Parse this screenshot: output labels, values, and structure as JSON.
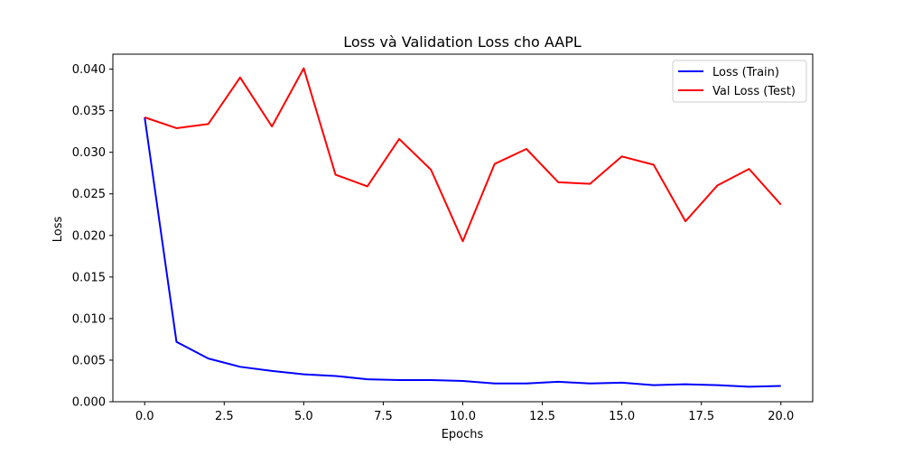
{
  "chart_data": {
    "type": "line",
    "title": "Loss và Validation Loss cho AAPL",
    "xlabel": "Epochs",
    "ylabel": "Loss",
    "xlim": [
      -1,
      21
    ],
    "ylim": [
      0.0,
      0.0418
    ],
    "x_ticks": [
      0,
      2.5,
      5,
      7.5,
      10,
      12.5,
      15,
      17.5,
      20
    ],
    "x_tick_labels": [
      "0.0",
      "2.5",
      "5.0",
      "7.5",
      "10.0",
      "12.5",
      "15.0",
      "17.5",
      "20.0"
    ],
    "y_ticks": [
      0.0,
      0.005,
      0.01,
      0.015,
      0.02,
      0.025,
      0.03,
      0.035,
      0.04
    ],
    "y_tick_labels": [
      "0.000",
      "0.005",
      "0.010",
      "0.015",
      "0.020",
      "0.025",
      "0.030",
      "0.035",
      "0.040"
    ],
    "grid": false,
    "legend_position": "top-right",
    "x": [
      0,
      1,
      2,
      3,
      4,
      5,
      6,
      7,
      8,
      9,
      10,
      11,
      12,
      13,
      14,
      15,
      16,
      17,
      18,
      19,
      20
    ],
    "series": [
      {
        "name": "Loss (Train)",
        "color": "#0000ff",
        "values": [
          0.0342,
          0.0072,
          0.0052,
          0.0042,
          0.0037,
          0.0033,
          0.0031,
          0.0027,
          0.0026,
          0.0026,
          0.0025,
          0.0022,
          0.0022,
          0.0024,
          0.0022,
          0.0023,
          0.002,
          0.0021,
          0.002,
          0.0018,
          0.0019
        ]
      },
      {
        "name": "Val Loss (Test)",
        "color": "#ff0000",
        "values": [
          0.0342,
          0.0329,
          0.0334,
          0.039,
          0.0331,
          0.0401,
          0.0273,
          0.0259,
          0.0316,
          0.0279,
          0.0193,
          0.0286,
          0.0304,
          0.0264,
          0.0262,
          0.0295,
          0.0285,
          0.0217,
          0.026,
          0.028,
          0.0237
        ]
      }
    ]
  }
}
